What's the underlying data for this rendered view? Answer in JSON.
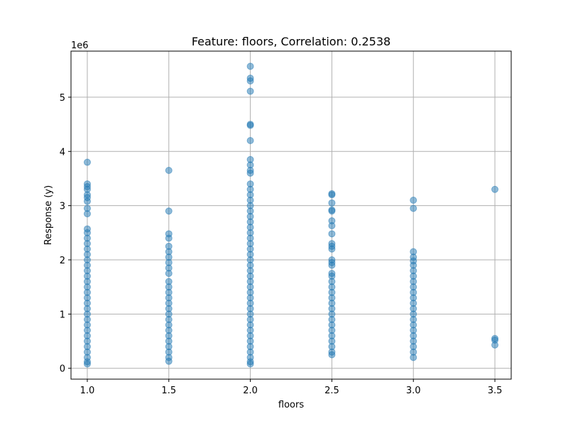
{
  "chart_data": {
    "type": "scatter",
    "title": "Feature: floors, Correlation: 0.2538",
    "xlabel": "floors",
    "ylabel": "Response (y)",
    "y_offset_label": "1e6",
    "y_multiplier": 1000000,
    "xlim": [
      0.9,
      3.6
    ],
    "ylim": [
      -200000,
      5850000
    ],
    "x_ticks": [
      1.0,
      1.5,
      2.0,
      2.5,
      3.0,
      3.5
    ],
    "x_tick_labels": [
      "1.0",
      "1.5",
      "2.0",
      "2.5",
      "3.0",
      "3.5"
    ],
    "y_ticks": [
      0,
      1000000,
      2000000,
      3000000,
      4000000,
      5000000
    ],
    "y_tick_labels": [
      "0",
      "1",
      "2",
      "3",
      "4",
      "5"
    ],
    "grid": true,
    "point_color": "#1f77b4",
    "point_alpha": 0.5,
    "series": [
      {
        "points": [
          {
            "x": 1.0,
            "y": 3800000
          },
          {
            "x": 1.0,
            "y": 3400000
          },
          {
            "x": 1.0,
            "y": 3350000
          },
          {
            "x": 1.0,
            "y": 3300000
          },
          {
            "x": 1.0,
            "y": 3200000
          },
          {
            "x": 1.0,
            "y": 3150000
          },
          {
            "x": 1.0,
            "y": 3080000
          },
          {
            "x": 1.0,
            "y": 2950000
          },
          {
            "x": 1.0,
            "y": 2850000
          },
          {
            "x": 1.0,
            "y": 2570000
          },
          {
            "x": 1.0,
            "y": 2500000
          },
          {
            "x": 1.0,
            "y": 2400000
          },
          {
            "x": 1.0,
            "y": 2300000
          },
          {
            "x": 1.0,
            "y": 2200000
          },
          {
            "x": 1.0,
            "y": 2100000
          },
          {
            "x": 1.0,
            "y": 2000000
          },
          {
            "x": 1.0,
            "y": 1900000
          },
          {
            "x": 1.0,
            "y": 1800000
          },
          {
            "x": 1.0,
            "y": 1700000
          },
          {
            "x": 1.0,
            "y": 1600000
          },
          {
            "x": 1.0,
            "y": 1500000
          },
          {
            "x": 1.0,
            "y": 1400000
          },
          {
            "x": 1.0,
            "y": 1300000
          },
          {
            "x": 1.0,
            "y": 1200000
          },
          {
            "x": 1.0,
            "y": 1100000
          },
          {
            "x": 1.0,
            "y": 1000000
          },
          {
            "x": 1.0,
            "y": 900000
          },
          {
            "x": 1.0,
            "y": 800000
          },
          {
            "x": 1.0,
            "y": 700000
          },
          {
            "x": 1.0,
            "y": 600000
          },
          {
            "x": 1.0,
            "y": 500000
          },
          {
            "x": 1.0,
            "y": 400000
          },
          {
            "x": 1.0,
            "y": 300000
          },
          {
            "x": 1.0,
            "y": 200000
          },
          {
            "x": 1.0,
            "y": 120000
          },
          {
            "x": 1.0,
            "y": 80000
          },
          {
            "x": 1.5,
            "y": 3650000
          },
          {
            "x": 1.5,
            "y": 2900000
          },
          {
            "x": 1.5,
            "y": 2480000
          },
          {
            "x": 1.5,
            "y": 2400000
          },
          {
            "x": 1.5,
            "y": 2250000
          },
          {
            "x": 1.5,
            "y": 2150000
          },
          {
            "x": 1.5,
            "y": 2050000
          },
          {
            "x": 1.5,
            "y": 1950000
          },
          {
            "x": 1.5,
            "y": 1850000
          },
          {
            "x": 1.5,
            "y": 1750000
          },
          {
            "x": 1.5,
            "y": 1600000
          },
          {
            "x": 1.5,
            "y": 1500000
          },
          {
            "x": 1.5,
            "y": 1400000
          },
          {
            "x": 1.5,
            "y": 1300000
          },
          {
            "x": 1.5,
            "y": 1200000
          },
          {
            "x": 1.5,
            "y": 1100000
          },
          {
            "x": 1.5,
            "y": 1000000
          },
          {
            "x": 1.5,
            "y": 900000
          },
          {
            "x": 1.5,
            "y": 800000
          },
          {
            "x": 1.5,
            "y": 700000
          },
          {
            "x": 1.5,
            "y": 600000
          },
          {
            "x": 1.5,
            "y": 500000
          },
          {
            "x": 1.5,
            "y": 400000
          },
          {
            "x": 1.5,
            "y": 300000
          },
          {
            "x": 1.5,
            "y": 200000
          },
          {
            "x": 1.5,
            "y": 130000
          },
          {
            "x": 2.0,
            "y": 5570000
          },
          {
            "x": 2.0,
            "y": 5350000
          },
          {
            "x": 2.0,
            "y": 5300000
          },
          {
            "x": 2.0,
            "y": 5110000
          },
          {
            "x": 2.0,
            "y": 4500000
          },
          {
            "x": 2.0,
            "y": 4480000
          },
          {
            "x": 2.0,
            "y": 4200000
          },
          {
            "x": 2.0,
            "y": 3850000
          },
          {
            "x": 2.0,
            "y": 3750000
          },
          {
            "x": 2.0,
            "y": 3650000
          },
          {
            "x": 2.0,
            "y": 3600000
          },
          {
            "x": 2.0,
            "y": 3400000
          },
          {
            "x": 2.0,
            "y": 3300000
          },
          {
            "x": 2.0,
            "y": 3200000
          },
          {
            "x": 2.0,
            "y": 3100000
          },
          {
            "x": 2.0,
            "y": 3000000
          },
          {
            "x": 2.0,
            "y": 2900000
          },
          {
            "x": 2.0,
            "y": 2800000
          },
          {
            "x": 2.0,
            "y": 2700000
          },
          {
            "x": 2.0,
            "y": 2600000
          },
          {
            "x": 2.0,
            "y": 2500000
          },
          {
            "x": 2.0,
            "y": 2400000
          },
          {
            "x": 2.0,
            "y": 2300000
          },
          {
            "x": 2.0,
            "y": 2200000
          },
          {
            "x": 2.0,
            "y": 2100000
          },
          {
            "x": 2.0,
            "y": 2000000
          },
          {
            "x": 2.0,
            "y": 1900000
          },
          {
            "x": 2.0,
            "y": 1800000
          },
          {
            "x": 2.0,
            "y": 1700000
          },
          {
            "x": 2.0,
            "y": 1600000
          },
          {
            "x": 2.0,
            "y": 1500000
          },
          {
            "x": 2.0,
            "y": 1400000
          },
          {
            "x": 2.0,
            "y": 1300000
          },
          {
            "x": 2.0,
            "y": 1200000
          },
          {
            "x": 2.0,
            "y": 1100000
          },
          {
            "x": 2.0,
            "y": 1000000
          },
          {
            "x": 2.0,
            "y": 900000
          },
          {
            "x": 2.0,
            "y": 800000
          },
          {
            "x": 2.0,
            "y": 700000
          },
          {
            "x": 2.0,
            "y": 600000
          },
          {
            "x": 2.0,
            "y": 500000
          },
          {
            "x": 2.0,
            "y": 400000
          },
          {
            "x": 2.0,
            "y": 300000
          },
          {
            "x": 2.0,
            "y": 200000
          },
          {
            "x": 2.0,
            "y": 120000
          },
          {
            "x": 2.0,
            "y": 80000
          },
          {
            "x": 2.5,
            "y": 3220000
          },
          {
            "x": 2.5,
            "y": 3200000
          },
          {
            "x": 2.5,
            "y": 3050000
          },
          {
            "x": 2.5,
            "y": 2920000
          },
          {
            "x": 2.5,
            "y": 2900000
          },
          {
            "x": 2.5,
            "y": 2720000
          },
          {
            "x": 2.5,
            "y": 2630000
          },
          {
            "x": 2.5,
            "y": 2480000
          },
          {
            "x": 2.5,
            "y": 2300000
          },
          {
            "x": 2.5,
            "y": 2250000
          },
          {
            "x": 2.5,
            "y": 2200000
          },
          {
            "x": 2.5,
            "y": 2000000
          },
          {
            "x": 2.5,
            "y": 1950000
          },
          {
            "x": 2.5,
            "y": 1900000
          },
          {
            "x": 2.5,
            "y": 1750000
          },
          {
            "x": 2.5,
            "y": 1700000
          },
          {
            "x": 2.5,
            "y": 1600000
          },
          {
            "x": 2.5,
            "y": 1500000
          },
          {
            "x": 2.5,
            "y": 1400000
          },
          {
            "x": 2.5,
            "y": 1300000
          },
          {
            "x": 2.5,
            "y": 1200000
          },
          {
            "x": 2.5,
            "y": 1100000
          },
          {
            "x": 2.5,
            "y": 1000000
          },
          {
            "x": 2.5,
            "y": 900000
          },
          {
            "x": 2.5,
            "y": 800000
          },
          {
            "x": 2.5,
            "y": 700000
          },
          {
            "x": 2.5,
            "y": 600000
          },
          {
            "x": 2.5,
            "y": 500000
          },
          {
            "x": 2.5,
            "y": 400000
          },
          {
            "x": 2.5,
            "y": 300000
          },
          {
            "x": 2.5,
            "y": 250000
          },
          {
            "x": 3.0,
            "y": 3100000
          },
          {
            "x": 3.0,
            "y": 2950000
          },
          {
            "x": 3.0,
            "y": 2150000
          },
          {
            "x": 3.0,
            "y": 2050000
          },
          {
            "x": 3.0,
            "y": 1980000
          },
          {
            "x": 3.0,
            "y": 1900000
          },
          {
            "x": 3.0,
            "y": 1800000
          },
          {
            "x": 3.0,
            "y": 1700000
          },
          {
            "x": 3.0,
            "y": 1600000
          },
          {
            "x": 3.0,
            "y": 1500000
          },
          {
            "x": 3.0,
            "y": 1400000
          },
          {
            "x": 3.0,
            "y": 1300000
          },
          {
            "x": 3.0,
            "y": 1200000
          },
          {
            "x": 3.0,
            "y": 1100000
          },
          {
            "x": 3.0,
            "y": 1000000
          },
          {
            "x": 3.0,
            "y": 900000
          },
          {
            "x": 3.0,
            "y": 800000
          },
          {
            "x": 3.0,
            "y": 700000
          },
          {
            "x": 3.0,
            "y": 600000
          },
          {
            "x": 3.0,
            "y": 500000
          },
          {
            "x": 3.0,
            "y": 400000
          },
          {
            "x": 3.0,
            "y": 300000
          },
          {
            "x": 3.0,
            "y": 200000
          },
          {
            "x": 3.5,
            "y": 3300000
          },
          {
            "x": 3.5,
            "y": 550000
          },
          {
            "x": 3.5,
            "y": 520000
          },
          {
            "x": 3.5,
            "y": 430000
          }
        ]
      }
    ]
  }
}
